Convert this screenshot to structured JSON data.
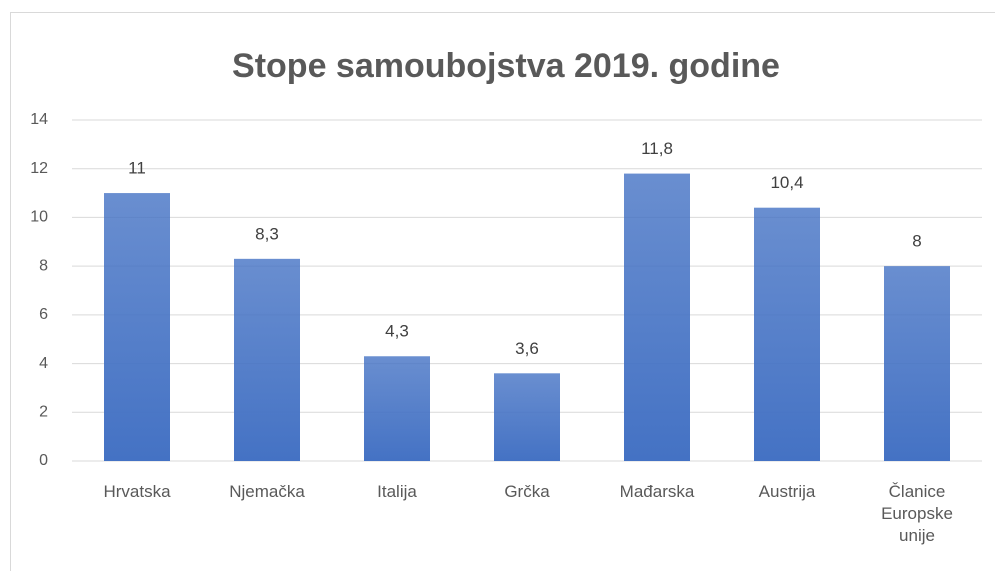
{
  "chart_data": {
    "type": "bar",
    "title": "Stope samoubojstva 2019. godine",
    "categories": [
      "Hrvatska",
      "Njemačka",
      "Italija",
      "Grčka",
      "Mađarska",
      "Austrija",
      "Članice Europske unije"
    ],
    "values": [
      11,
      8.3,
      4.3,
      3.6,
      11.8,
      10.4,
      8
    ],
    "value_labels": [
      "11",
      "8,3",
      "4,3",
      "3,6",
      "11,8",
      "10,4",
      "8"
    ],
    "color": "#4472c4",
    "ylim": [
      0,
      14
    ],
    "yticks": [
      0,
      2,
      4,
      6,
      8,
      10,
      12,
      14
    ],
    "grid": true
  }
}
